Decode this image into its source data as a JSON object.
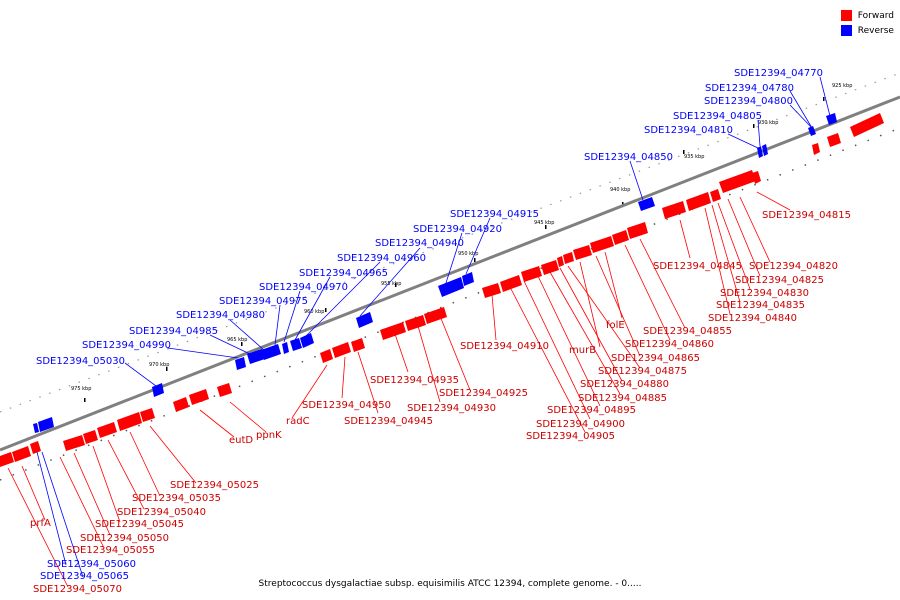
{
  "caption": "Streptococcus dysgalactiae subsp. equisimilis ATCC 12394, complete genome. - 0.....",
  "legend": [
    {
      "label": "Forward",
      "color": "#ff0000"
    },
    {
      "label": "Reverse",
      "color": "#0000ff"
    }
  ],
  "colors": {
    "forward": "#ff0000",
    "reverse": "#0000ff",
    "backbone": "#808080"
  },
  "scale_ticks": [
    "925 kbp",
    "930 kbp",
    "935 kbp",
    "940 kbp",
    "945 kbp",
    "950 kbp",
    "955 kbp",
    "960 kbp",
    "965 kbp",
    "970 kbp",
    "975 kbp"
  ],
  "genes": [
    {
      "name": "SDE12394_04770",
      "strand": "reverse"
    },
    {
      "name": "SDE12394_04780",
      "strand": "reverse"
    },
    {
      "name": "SDE12394_04800",
      "strand": "reverse"
    },
    {
      "name": "SDE12394_04805",
      "strand": "reverse"
    },
    {
      "name": "SDE12394_04810",
      "strand": "reverse"
    },
    {
      "name": "SDE12394_04850",
      "strand": "reverse"
    },
    {
      "name": "SDE12394_04915",
      "strand": "reverse"
    },
    {
      "name": "SDE12394_04920",
      "strand": "reverse"
    },
    {
      "name": "SDE12394_04940",
      "strand": "reverse"
    },
    {
      "name": "SDE12394_04960",
      "strand": "reverse"
    },
    {
      "name": "SDE12394_04965",
      "strand": "reverse"
    },
    {
      "name": "SDE12394_04970",
      "strand": "reverse"
    },
    {
      "name": "SDE12394_04975",
      "strand": "reverse"
    },
    {
      "name": "SDE12394_04980",
      "strand": "reverse"
    },
    {
      "name": "SDE12394_04985",
      "strand": "reverse"
    },
    {
      "name": "SDE12394_04990",
      "strand": "reverse"
    },
    {
      "name": "SDE12394_05030",
      "strand": "reverse"
    },
    {
      "name": "SDE12394_04815",
      "strand": "forward"
    },
    {
      "name": "SDE12394_04820",
      "strand": "forward"
    },
    {
      "name": "SDE12394_04825",
      "strand": "forward"
    },
    {
      "name": "SDE12394_04830",
      "strand": "forward"
    },
    {
      "name": "SDE12394_04835",
      "strand": "forward"
    },
    {
      "name": "SDE12394_04840",
      "strand": "forward"
    },
    {
      "name": "SDE12394_04845",
      "strand": "forward"
    },
    {
      "name": "SDE12394_04855",
      "strand": "forward"
    },
    {
      "name": "SDE12394_04860",
      "strand": "forward"
    },
    {
      "name": "folE",
      "strand": "forward"
    },
    {
      "name": "SDE12394_04865",
      "strand": "forward"
    },
    {
      "name": "murB",
      "strand": "forward"
    },
    {
      "name": "SDE12394_04875",
      "strand": "forward"
    },
    {
      "name": "SDE12394_04880",
      "strand": "forward"
    },
    {
      "name": "SDE12394_04885",
      "strand": "forward"
    },
    {
      "name": "SDE12394_04895",
      "strand": "forward"
    },
    {
      "name": "SDE12394_04900",
      "strand": "forward"
    },
    {
      "name": "SDE12394_04905",
      "strand": "forward"
    },
    {
      "name": "SDE12394_04910",
      "strand": "forward"
    },
    {
      "name": "SDE12394_04925",
      "strand": "forward"
    },
    {
      "name": "SDE12394_04930",
      "strand": "forward"
    },
    {
      "name": "SDE12394_04935",
      "strand": "forward"
    },
    {
      "name": "SDE12394_04945",
      "strand": "forward"
    },
    {
      "name": "SDE12394_04950",
      "strand": "forward"
    },
    {
      "name": "radC",
      "strand": "forward"
    },
    {
      "name": "ppnK",
      "strand": "forward"
    },
    {
      "name": "eutD",
      "strand": "forward"
    },
    {
      "name": "SDE12394_05025",
      "strand": "forward"
    },
    {
      "name": "SDE12394_05035",
      "strand": "forward"
    },
    {
      "name": "SDE12394_05040",
      "strand": "forward"
    },
    {
      "name": "SDE12394_05045",
      "strand": "forward"
    },
    {
      "name": "SDE12394_05050",
      "strand": "forward"
    },
    {
      "name": "SDE12394_05055",
      "strand": "forward"
    },
    {
      "name": "SDE12394_05060",
      "strand": "reverse"
    },
    {
      "name": "SDE12394_05065",
      "strand": "reverse"
    },
    {
      "name": "prfA",
      "strand": "forward"
    },
    {
      "name": "SDE12394_05070",
      "strand": "forward"
    }
  ]
}
